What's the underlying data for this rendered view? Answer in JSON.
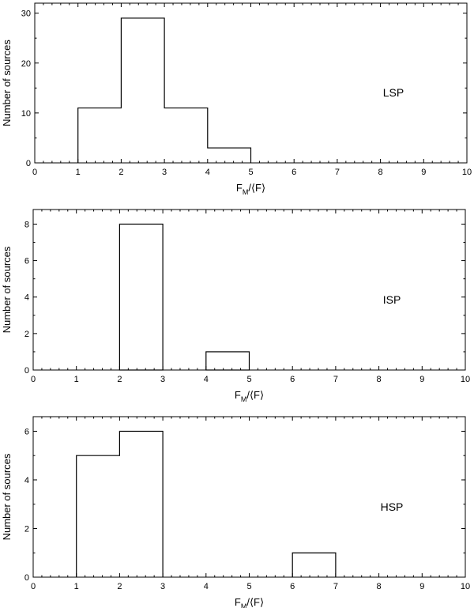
{
  "chart_data": [
    {
      "type": "bar",
      "panel_label": "LSP",
      "xlabel": "F_M/⟨F⟩",
      "xlabel_main": "F",
      "xlabel_sub": "M",
      "xlabel_tail": "/⟨F⟩",
      "ylabel": "Number of sources",
      "xlim": [
        0,
        10
      ],
      "ylim": [
        0,
        32
      ],
      "xticks": [
        0,
        1,
        2,
        3,
        4,
        5,
        6,
        7,
        8,
        9,
        10
      ],
      "yticks": [
        0,
        10,
        20,
        30
      ],
      "bins": [
        {
          "x0": 1,
          "x1": 2,
          "value": 11
        },
        {
          "x0": 2,
          "x1": 3,
          "value": 29
        },
        {
          "x0": 3,
          "x1": 4,
          "value": 11
        },
        {
          "x0": 4,
          "x1": 5,
          "value": 3
        }
      ],
      "histogram_style": "step",
      "grid": false
    },
    {
      "type": "bar",
      "panel_label": "ISP",
      "xlabel": "F_M/⟨F⟩",
      "xlabel_main": "F",
      "xlabel_sub": "M",
      "xlabel_tail": "/⟨F⟩",
      "ylabel": "Number of sources",
      "xlim": [
        0,
        10
      ],
      "ylim": [
        0,
        8.8
      ],
      "xticks": [
        0,
        1,
        2,
        3,
        4,
        5,
        6,
        7,
        8,
        9,
        10
      ],
      "yticks": [
        0,
        2,
        4,
        6,
        8
      ],
      "bins": [
        {
          "x0": 2,
          "x1": 3,
          "value": 8
        },
        {
          "x0": 4,
          "x1": 5,
          "value": 1
        }
      ],
      "histogram_style": "boxes",
      "grid": false
    },
    {
      "type": "bar",
      "panel_label": "HSP",
      "xlabel": "F_M/⟨F⟩",
      "xlabel_main": "F",
      "xlabel_sub": "M",
      "xlabel_tail": "/⟨F⟩",
      "ylabel": "Number of sources",
      "xlim": [
        0,
        10
      ],
      "ylim": [
        0,
        6.6
      ],
      "xticks": [
        0,
        1,
        2,
        3,
        4,
        5,
        6,
        7,
        8,
        9,
        10
      ],
      "yticks": [
        0,
        2,
        4,
        6
      ],
      "bins": [
        {
          "x0": 1,
          "x1": 2,
          "value": 5
        },
        {
          "x0": 2,
          "x1": 3,
          "value": 6
        },
        {
          "x0": 6,
          "x1": 7,
          "value": 1
        }
      ],
      "histogram_style": "step",
      "grid": false
    }
  ]
}
